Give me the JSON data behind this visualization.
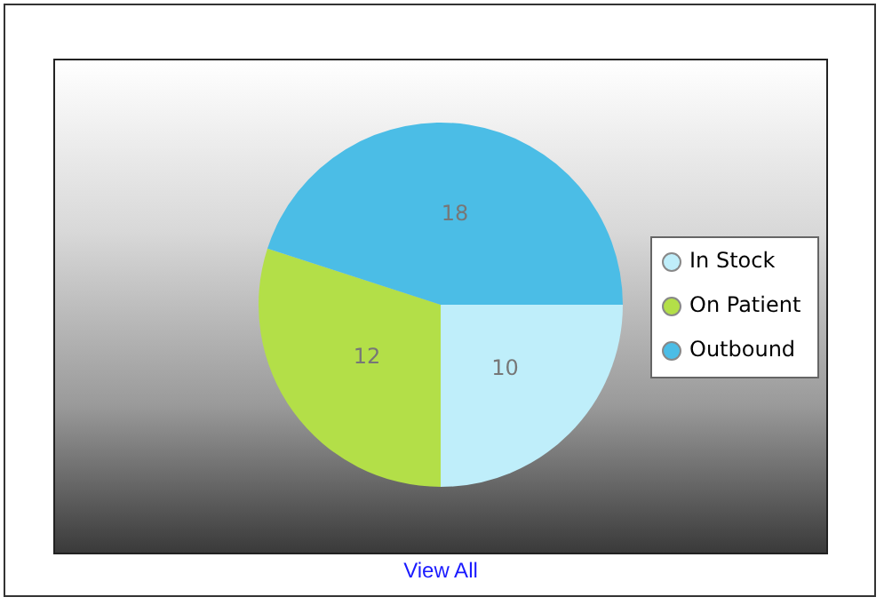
{
  "chart_data": {
    "type": "pie",
    "categories": [
      "In Stock",
      "On Patient",
      "Outbound"
    ],
    "values": [
      10,
      12,
      18
    ],
    "colors": [
      "#bfeefa",
      "#b3df48",
      "#4bbde6"
    ],
    "data_labels": true,
    "legend": "right",
    "annotations": [
      "View All"
    ]
  }
}
